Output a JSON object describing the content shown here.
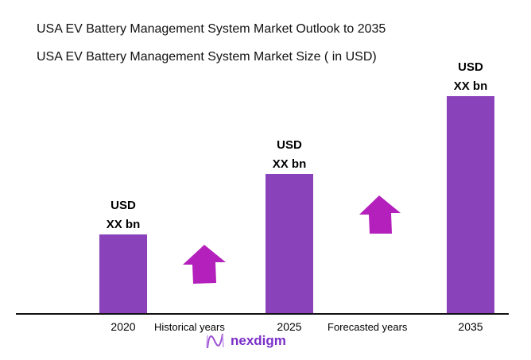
{
  "chart_data": {
    "type": "bar",
    "title": "USA EV Battery Management System Market Outlook to 2035",
    "subtitle": "USA EV Battery Management System Market Size ( in USD)",
    "categories": [
      "2020",
      "2025",
      "2035"
    ],
    "values": [
      100,
      176,
      274
    ],
    "data_labels": [
      [
        "USD",
        "XX bn"
      ],
      [
        "USD",
        "XX bn"
      ],
      [
        "USD",
        "XX bn"
      ]
    ],
    "annotations": [
      "Historical years",
      "Forecasted years"
    ],
    "grid": false,
    "colors": {
      "bar": "#8a42bb",
      "arrow": "#b320bb"
    }
  },
  "brand": {
    "logo_text": "nexdigm",
    "logo_icon": "wave-n-icon"
  }
}
